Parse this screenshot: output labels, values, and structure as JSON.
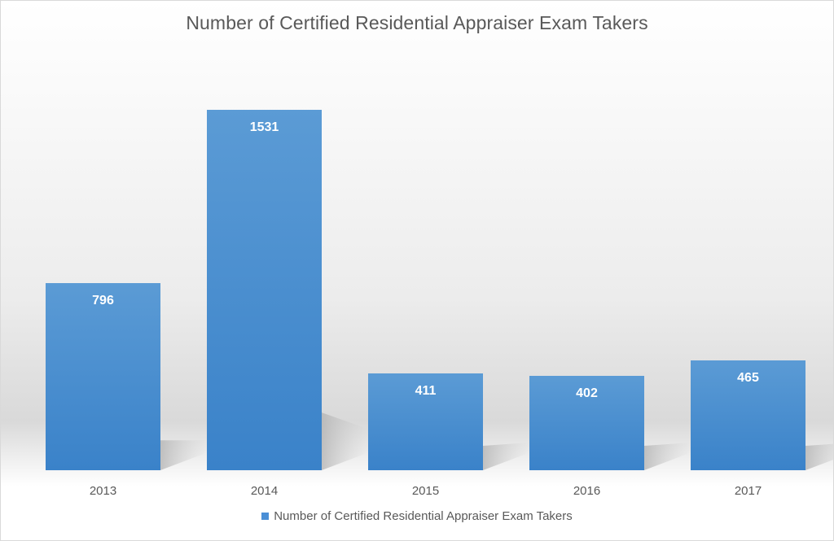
{
  "chart_data": {
    "type": "bar",
    "title": "Number of Certified Residential Appraiser Exam Takers",
    "categories": [
      "2013",
      "2014",
      "2015",
      "2016",
      "2017"
    ],
    "series": [
      {
        "name": "Number of Certified Residential Appraiser Exam Takers",
        "values": [
          796,
          1531,
          411,
          402,
          465
        ]
      }
    ],
    "data_labels": [
      "796",
      "1531",
      "411",
      "402",
      "465"
    ],
    "xlabel": "",
    "ylabel": "",
    "ylim": [
      0,
      1531
    ],
    "grid": false,
    "legend_position": "bottom",
    "colors": {
      "bar_top": "#5b9bd5",
      "bar_bottom": "#3a82c9",
      "label": "#ffffff",
      "axis_text": "#595959",
      "shadow": "#bfbfbf"
    }
  }
}
